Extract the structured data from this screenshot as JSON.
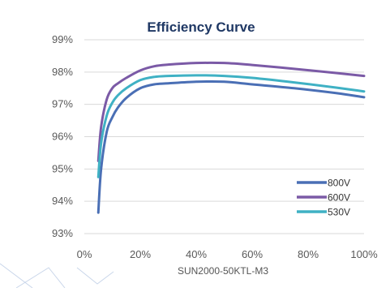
{
  "chart_data": {
    "type": "line",
    "title": "Efficiency Curve",
    "xlabel": "SUN2000-50KTL-M3",
    "ylabel": "",
    "xlim": [
      0,
      100
    ],
    "ylim": [
      93,
      99
    ],
    "x_ticks": [
      "0%",
      "20%",
      "40%",
      "60%",
      "80%",
      "100%"
    ],
    "y_ticks": [
      "93%",
      "94%",
      "95%",
      "96%",
      "97%",
      "98%",
      "99%"
    ],
    "grid": "horizontal",
    "legend_position": "bottom-right",
    "series": [
      {
        "name": "800V",
        "color": "#4a6fb5",
        "x": [
          5,
          6,
          8,
          10,
          12,
          15,
          20,
          25,
          30,
          40,
          50,
          60,
          75,
          90,
          100
        ],
        "y": [
          93.65,
          95.0,
          96.15,
          96.6,
          96.9,
          97.2,
          97.5,
          97.62,
          97.65,
          97.7,
          97.7,
          97.62,
          97.5,
          97.35,
          97.22
        ]
      },
      {
        "name": "600V",
        "color": "#7b5aa6",
        "x": [
          5,
          6,
          8,
          10,
          12,
          15,
          20,
          25,
          30,
          40,
          50,
          60,
          75,
          90,
          100
        ],
        "y": [
          95.25,
          96.3,
          97.15,
          97.5,
          97.65,
          97.82,
          98.05,
          98.18,
          98.23,
          98.28,
          98.28,
          98.22,
          98.1,
          97.97,
          97.88
        ]
      },
      {
        "name": "530V",
        "color": "#3fb1c4",
        "x": [
          5,
          6,
          8,
          10,
          12,
          15,
          20,
          25,
          30,
          40,
          50,
          60,
          75,
          90,
          100
        ],
        "y": [
          94.75,
          95.8,
          96.65,
          97.05,
          97.28,
          97.5,
          97.75,
          97.85,
          97.88,
          97.9,
          97.88,
          97.82,
          97.68,
          97.52,
          97.4
        ]
      }
    ]
  }
}
